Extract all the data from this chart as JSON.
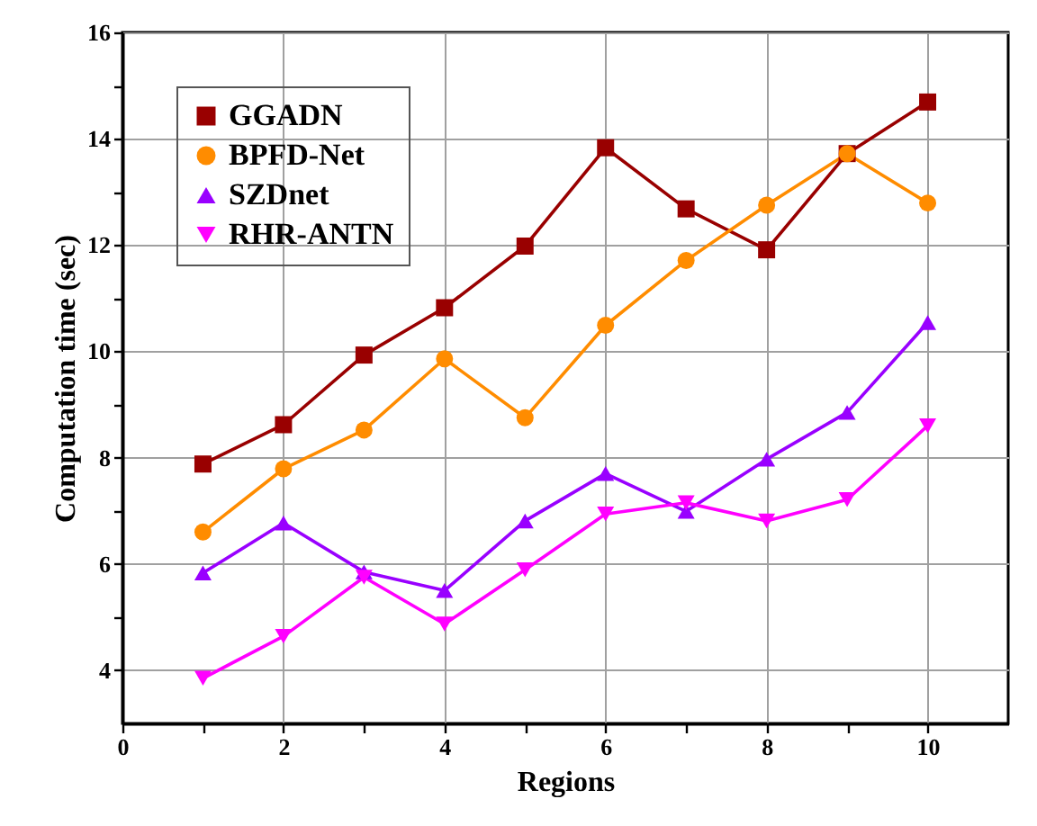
{
  "chart_data": {
    "type": "line",
    "xlabel": "Regions",
    "ylabel": "Computation time (sec)",
    "x": [
      1,
      2,
      3,
      4,
      5,
      6,
      7,
      8,
      9,
      10
    ],
    "xlim": [
      0,
      11
    ],
    "xticks": [
      0,
      {
        "value": 1,
        "label": null
      },
      2,
      {
        "value": 3,
        "label": null
      },
      4,
      {
        "value": 5,
        "label": null
      },
      6,
      {
        "value": 7,
        "label": null
      },
      8,
      {
        "value": 9,
        "label": null
      },
      10
    ],
    "ylim": [
      3,
      16
    ],
    "yticks": [
      4,
      {
        "value": 5,
        "label": null
      },
      6,
      {
        "value": 7,
        "label": null
      },
      8,
      {
        "value": 9,
        "label": null
      },
      10,
      {
        "value": 11,
        "label": null
      },
      12,
      {
        "value": 13,
        "label": null
      },
      14,
      {
        "value": 15,
        "label": null
      },
      16
    ],
    "grid": true,
    "legend": "top left",
    "line_style": "solid",
    "series": [
      {
        "name": "GGADN",
        "color": "#990000",
        "marker": "square",
        "values": [
          7.88,
          8.62,
          9.93,
          10.82,
          11.98,
          13.83,
          12.68,
          11.91,
          13.72,
          14.69
        ]
      },
      {
        "name": "BPFD-Net",
        "color": "#ff8c00",
        "marker": "circle",
        "values": [
          6.6,
          7.79,
          8.52,
          9.86,
          8.75,
          10.49,
          11.71,
          12.75,
          13.72,
          12.79
        ]
      },
      {
        "name": "SZDnet",
        "color": "#9900ff",
        "marker": "triangle",
        "values": [
          5.83,
          6.77,
          5.85,
          5.5,
          6.81,
          7.7,
          6.99,
          7.97,
          8.85,
          10.54
        ]
      },
      {
        "name": "RHR-ANTN",
        "color": "#ff00ff",
        "marker": "triangle-down",
        "values": [
          3.85,
          4.64,
          5.75,
          4.87,
          5.89,
          6.94,
          7.15,
          6.81,
          7.21,
          8.6
        ]
      }
    ]
  }
}
